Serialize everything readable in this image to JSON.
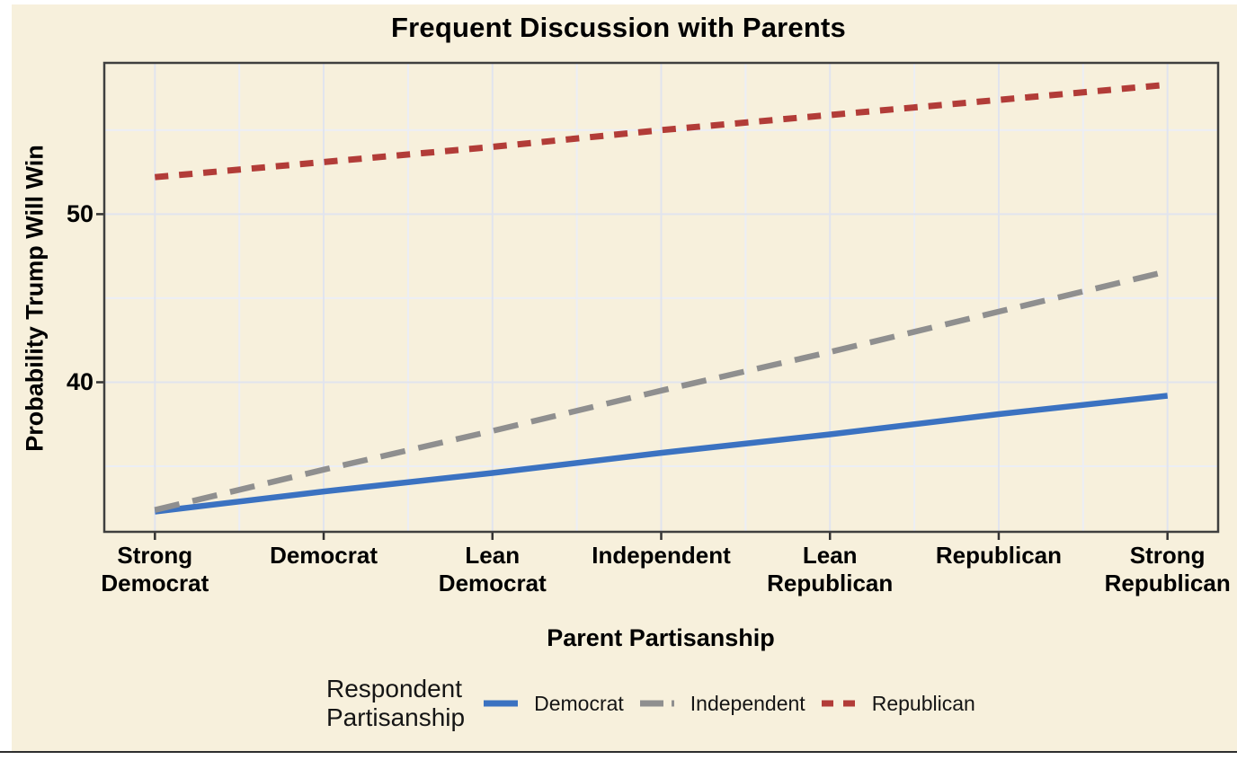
{
  "chart_data": {
    "type": "line",
    "title": "Frequent Discussion with Parents",
    "xlabel": "Parent Partisanship",
    "ylabel": "Probability Trump Will Win",
    "categories": [
      "Strong Democrat",
      "Democrat",
      "Lean Democrat",
      "Independent",
      "Lean Republican",
      "Republican",
      "Strong Republican"
    ],
    "series": [
      {
        "name": "Democrat",
        "color": "#3b72c1",
        "linetype": "solid",
        "values": [
          32.3,
          33.5,
          34.6,
          35.8,
          36.9,
          38.1,
          39.2
        ]
      },
      {
        "name": "Independent",
        "color": "#8f8f8f",
        "linetype": "longdash",
        "values": [
          32.4,
          34.8,
          37.1,
          39.5,
          41.8,
          44.2,
          46.6
        ]
      },
      {
        "name": "Republican",
        "color": "#b23c38",
        "linetype": "shortdash",
        "values": [
          52.2,
          53.1,
          54.0,
          55.0,
          55.9,
          56.8,
          57.7
        ]
      }
    ],
    "y_ticks": [
      50,
      40
    ],
    "y_minor_ticks": [
      55,
      45,
      35
    ],
    "x_range": [
      0.7,
      7.3
    ],
    "y_range": [
      31.1,
      59.0
    ],
    "grid": "on",
    "legend_position": "bottom",
    "legend_title": "Respondent\nPartisanship"
  },
  "style_colors": {
    "figure_background": "#f7f0dc",
    "panel_border": "#3f3f3f",
    "grid_major": "#e1e4ee",
    "grid_minor": "#eceef5",
    "tick_mark": "#333333",
    "text": "#000000"
  }
}
